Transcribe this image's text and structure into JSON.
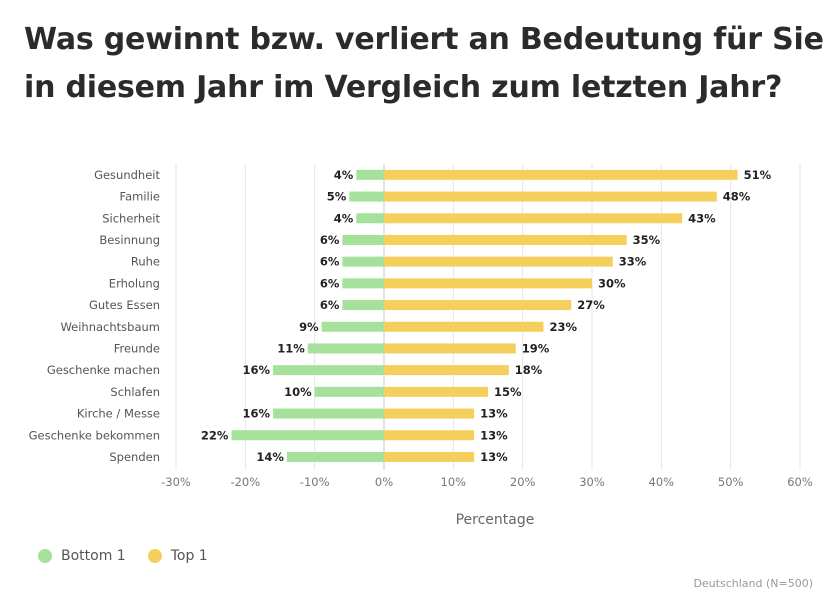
{
  "title": "Was gewinnt bzw. verliert an Bedeutung für Sie in diesem Jahr im Vergleich zum letzten Jahr?",
  "chart_data": {
    "type": "bar",
    "orientation": "horizontal-diverging",
    "categories": [
      "Gesundheit",
      "Familie",
      "Sicherheit",
      "Besinnung",
      "Ruhe",
      "Erholung",
      "Gutes Essen",
      "Weihnachtsbaum",
      "Freunde",
      "Geschenke machen",
      "Schlafen",
      "Kirche / Messe",
      "Geschenke bekommen",
      "Spenden"
    ],
    "series": [
      {
        "name": "Bottom 1",
        "color": "#a6e19c",
        "values": [
          -4,
          -5,
          -4,
          -6,
          -6,
          -6,
          -6,
          -9,
          -11,
          -16,
          -10,
          -16,
          -22,
          -14
        ],
        "labels": [
          "4%",
          "5%",
          "4%",
          "6%",
          "6%",
          "6%",
          "6%",
          "9%",
          "11%",
          "16%",
          "10%",
          "16%",
          "22%",
          "14%"
        ]
      },
      {
        "name": "Top 1",
        "color": "#f5cf5c",
        "values": [
          51,
          48,
          43,
          35,
          33,
          30,
          27,
          23,
          19,
          18,
          15,
          13,
          13,
          13
        ],
        "labels": [
          "51%",
          "48%",
          "43%",
          "35%",
          "33%",
          "30%",
          "27%",
          "23%",
          "19%",
          "18%",
          "15%",
          "13%",
          "13%",
          "13%"
        ]
      }
    ],
    "xlim": [
      -30,
      60
    ],
    "xticks": [
      -30,
      -20,
      -10,
      0,
      10,
      20,
      30,
      40,
      50,
      60
    ],
    "xtick_labels": [
      "-30%",
      "-20%",
      "-10%",
      "0%",
      "10%",
      "20%",
      "30%",
      "40%",
      "50%",
      "60%"
    ],
    "xlabel": "Percentage",
    "grid": true
  },
  "legend": {
    "items": [
      {
        "label": "Bottom 1",
        "color": "#a6e19c"
      },
      {
        "label": "Top 1",
        "color": "#f5cf5c"
      }
    ]
  },
  "source": "Deutschland (N=500)"
}
